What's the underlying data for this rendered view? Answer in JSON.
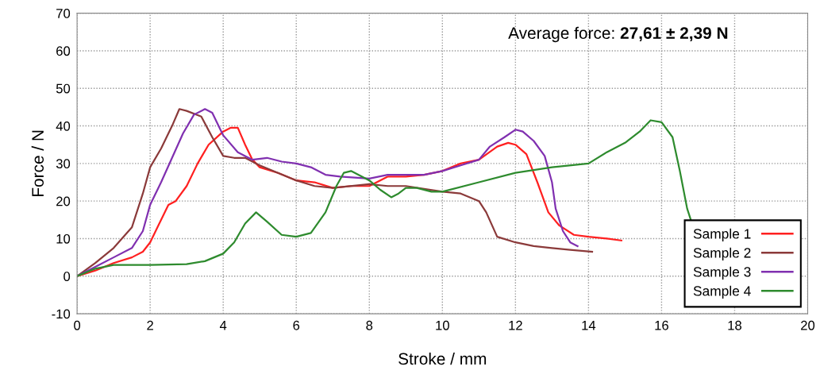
{
  "chart_data": {
    "type": "line",
    "xlabel": "Stroke / mm",
    "ylabel": "Force / N",
    "xlim": [
      0,
      20
    ],
    "ylim": [
      -10,
      70
    ],
    "xticks": [
      0,
      2,
      4,
      6,
      8,
      10,
      12,
      14,
      16,
      18,
      20
    ],
    "yticks": [
      -10,
      0,
      10,
      20,
      30,
      40,
      50,
      60,
      70
    ],
    "grid": true,
    "legend": "bottom right",
    "line_style": "solid",
    "marker": "none",
    "annotations": [
      "Average force: 27,61 ± 2,39 N"
    ],
    "series": [
      {
        "name": "Sample 1",
        "color": "#ff2020",
        "x": [
          0,
          0.5,
          1,
          1.5,
          1.8,
          2,
          2.2,
          2.5,
          2.7,
          3,
          3.3,
          3.6,
          4,
          4.2,
          4.4,
          4.6,
          4.8,
          5,
          5.5,
          6,
          6.5,
          7,
          7.5,
          8,
          8.5,
          9,
          9.5,
          10,
          10.5,
          11,
          11.5,
          11.8,
          12,
          12.3,
          12.6,
          12.9,
          13.2,
          13.6,
          14,
          14.5,
          14.9
        ],
        "values": [
          0,
          1.5,
          3.5,
          5,
          6.5,
          9,
          13,
          19,
          20,
          24,
          30,
          35,
          38.5,
          39.5,
          39.5,
          35,
          31,
          29,
          27.5,
          25.5,
          25,
          23.5,
          24,
          24,
          26.5,
          26.5,
          27,
          28,
          30,
          31,
          34.5,
          35.5,
          35,
          32.5,
          25,
          17,
          13.5,
          11,
          10.5,
          10,
          9.5
        ]
      },
      {
        "name": "Sample 2",
        "color": "#8b3a3a",
        "x": [
          0,
          0.5,
          1,
          1.5,
          1.8,
          2,
          2.3,
          2.6,
          2.8,
          3,
          3.4,
          3.7,
          4,
          4.3,
          4.6,
          5,
          5.5,
          6,
          6.5,
          7,
          8,
          8.5,
          9,
          10,
          10.5,
          11,
          11.2,
          11.5,
          12,
          12.5,
          13,
          13.5,
          14.1
        ],
        "values": [
          0,
          3.5,
          7.5,
          13,
          22,
          29,
          34,
          40,
          44.5,
          44,
          42.5,
          37,
          32,
          31.5,
          31.5,
          29.5,
          27.5,
          25.5,
          24,
          23.5,
          24.5,
          24,
          24,
          22.5,
          22,
          20,
          17,
          10.5,
          9,
          8,
          7.5,
          7,
          6.5
        ]
      },
      {
        "name": "Sample 3",
        "color": "#8030b0",
        "x": [
          0,
          0.5,
          1,
          1.5,
          1.8,
          2,
          2.3,
          2.6,
          2.9,
          3.2,
          3.5,
          3.7,
          4,
          4.4,
          4.8,
          5.2,
          5.6,
          6,
          6.4,
          6.8,
          7.2,
          8,
          8.5,
          9,
          9.5,
          10,
          10.5,
          11,
          11.3,
          11.7,
          12,
          12.2,
          12.5,
          12.8,
          13,
          13.1,
          13.3,
          13.5,
          13.7
        ],
        "values": [
          0,
          2.5,
          5,
          7.5,
          12,
          19,
          25,
          31.5,
          38,
          43,
          44.5,
          43.5,
          37.5,
          33,
          31,
          31.5,
          30.5,
          30,
          29,
          27,
          26.5,
          26,
          27,
          27,
          27,
          28,
          29.5,
          31,
          34.5,
          37,
          39,
          38.5,
          36,
          32,
          25,
          18,
          12,
          9,
          8
        ]
      },
      {
        "name": "Sample 4",
        "color": "#2e8b2e",
        "x": [
          0,
          0.5,
          1,
          2,
          3,
          3.5,
          4,
          4.3,
          4.6,
          4.9,
          5.2,
          5.6,
          6,
          6.4,
          6.8,
          7.1,
          7.3,
          7.5,
          8,
          8.3,
          8.6,
          8.8,
          9,
          9.3,
          9.7,
          10,
          11,
          12,
          13,
          14,
          14.5,
          15,
          15.4,
          15.7,
          16,
          16.3,
          16.5,
          16.7,
          16.8
        ],
        "values": [
          0,
          2,
          3,
          3,
          3.2,
          4,
          6,
          9,
          14,
          17,
          14.5,
          11,
          10.5,
          11.5,
          17,
          24,
          27.5,
          28,
          25.5,
          23,
          21,
          22,
          23.5,
          23.5,
          22.5,
          22.5,
          25,
          27.5,
          29,
          30,
          33,
          35.5,
          38.5,
          41.5,
          41,
          37,
          28,
          18,
          15
        ]
      }
    ]
  }
}
